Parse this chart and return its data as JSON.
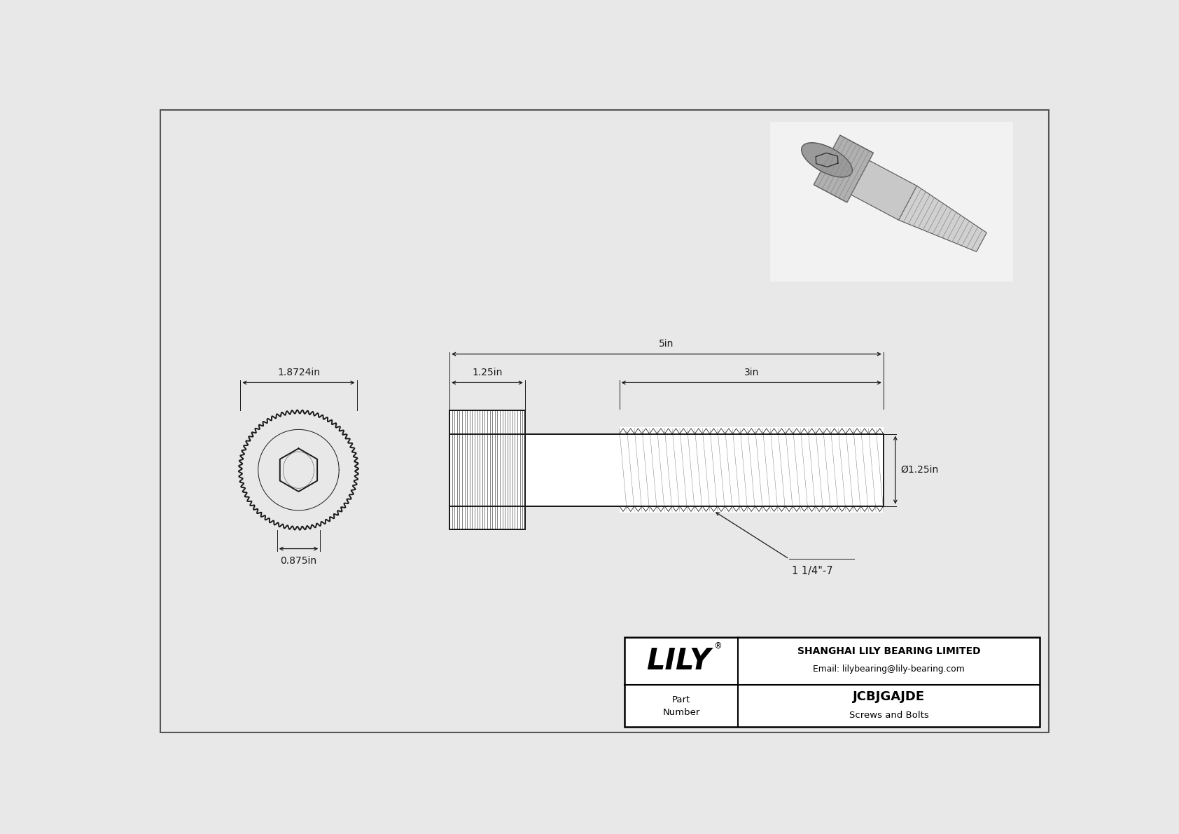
{
  "bg_color": "#e8e8e8",
  "drawing_bg": "#e8e8e8",
  "line_color": "#1a1a1a",
  "part_number": "JCBJGAJDE",
  "category": "Screws and Bolts",
  "company_name": "SHANGHAI LILY BEARING LIMITED",
  "company_email": "Email: lilybearing@lily-bearing.com",
  "logo_text": "LILY",
  "dim_head_width": "1.8724in",
  "dim_hex_drive": "0.875in",
  "dim_head_length": "1.25in",
  "dim_total_length": "5in",
  "dim_thread_length": "3in",
  "dim_shank_dia": "Ø1.25in",
  "dim_thread_spec": "1 1/4\"-7",
  "border_color": "#555555",
  "white": "#ffffff",
  "black": "#000000"
}
